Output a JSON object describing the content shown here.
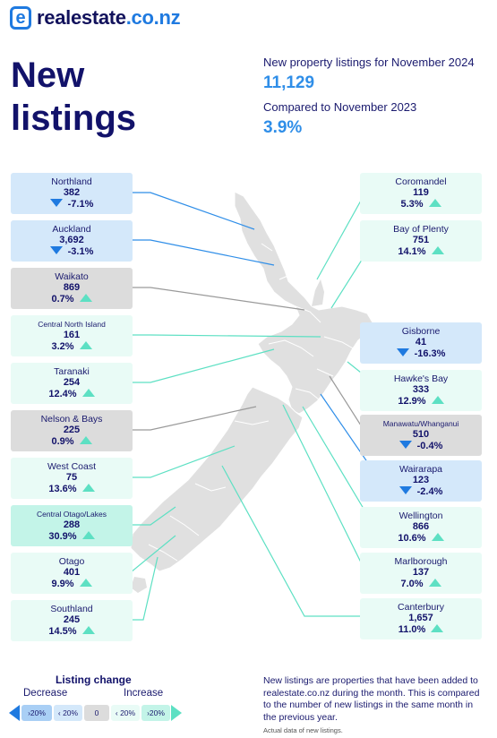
{
  "brand": {
    "mark": "e",
    "name": "realestate",
    "tld": ".co.nz"
  },
  "title": {
    "line1": "New",
    "line2": "listings"
  },
  "summary": {
    "listings_label": "New property listings for November 2024",
    "listings_value": "11,129",
    "compare_label": "Compared to November 2023",
    "compare_value": "3.9%"
  },
  "regions": [
    {
      "name": "Northland",
      "listings": "382",
      "change": "-7.1%",
      "direction": "down"
    },
    {
      "name": "Auckland",
      "listings": "3,692",
      "change": "-3.1%",
      "direction": "down"
    },
    {
      "name": "Waikato",
      "listings": "869",
      "change": "0.7%",
      "direction": "up"
    },
    {
      "name": "Central North Island",
      "listings": "161",
      "change": "3.2%",
      "direction": "up"
    },
    {
      "name": "Taranaki",
      "listings": "254",
      "change": "12.4%",
      "direction": "up"
    },
    {
      "name": "Nelson & Bays",
      "listings": "225",
      "change": "0.9%",
      "direction": "up"
    },
    {
      "name": "West Coast",
      "listings": "75",
      "change": "13.6%",
      "direction": "up"
    },
    {
      "name": "Central Otago/Lakes",
      "listings": "288",
      "change": "30.9%",
      "direction": "up"
    },
    {
      "name": "Otago",
      "listings": "401",
      "change": "9.9%",
      "direction": "up"
    },
    {
      "name": "Southland",
      "listings": "245",
      "change": "14.5%",
      "direction": "up"
    },
    {
      "name": "Coromandel",
      "listings": "119",
      "change": "5.3%",
      "direction": "up"
    },
    {
      "name": "Bay of Plenty",
      "listings": "751",
      "change": "14.1%",
      "direction": "up"
    },
    {
      "name": "Gisborne",
      "listings": "41",
      "change": "-16.3%",
      "direction": "down"
    },
    {
      "name": "Hawke's Bay",
      "listings": "333",
      "change": "12.9%",
      "direction": "up"
    },
    {
      "name": "Manawatu/Whanganui",
      "listings": "510",
      "change": "-0.4%",
      "direction": "down"
    },
    {
      "name": "Wairarapa",
      "listings": "123",
      "change": "-2.4%",
      "direction": "down"
    },
    {
      "name": "Wellington",
      "listings": "866",
      "change": "10.6%",
      "direction": "up"
    },
    {
      "name": "Marlborough",
      "listings": "137",
      "change": "7.0%",
      "direction": "up"
    },
    {
      "name": "Canterbury",
      "listings": "1,657",
      "change": "11.0%",
      "direction": "up"
    }
  ],
  "legend": {
    "title": "Listing change",
    "decrease_label": "Decrease",
    "increase_label": "Increase",
    "bins": [
      "›20%",
      "‹ 20%",
      "0",
      "‹ 20%",
      "›20%"
    ],
    "colors": {
      "big_decrease": "#a9cff5",
      "decrease": "#d4e8fa",
      "neutral": "#dcdcdc",
      "increase": "#e9fbf6",
      "big_increase": "#c3f4e8"
    }
  },
  "footer": {
    "description": "New listings are properties that have been added to realestate.co.nz during the month. This is compared to the number of new listings in the same month in the previous year.",
    "note": "Actual data of new listings."
  }
}
